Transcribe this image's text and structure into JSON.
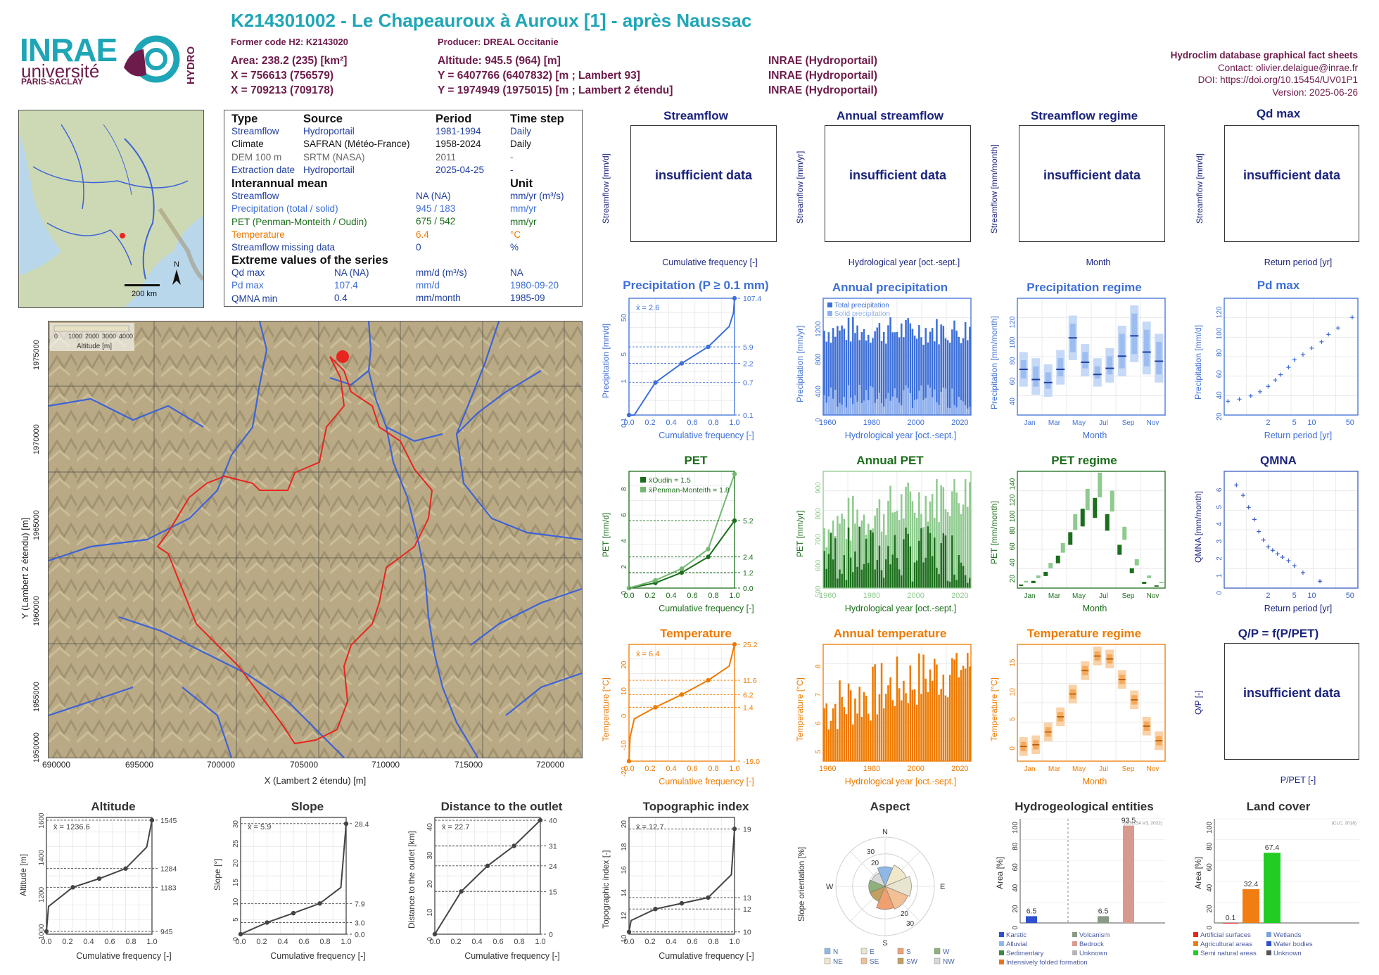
{
  "logos": {
    "inrae": "INRAE",
    "universite": "université",
    "paris_saclay": "PARIS-SACLAY",
    "hydro": "HYDRO"
  },
  "header": {
    "title": "K214301002 - Le Chapeauroux à Auroux [1] - après Naussac",
    "former_code": "Former code H2: K2143020",
    "producer": "Producer: DREAL Occitanie",
    "area": "Area: 238.2 (235) [km²]",
    "x_lambert93": "X = 756613 (756579)",
    "x_lambert2": "X = 709213 (709178)",
    "altitude": "Altitude: 945.5 (964) [m]",
    "y_lambert93": "Y = 6407766 (6407832) [m ; Lambert 93]",
    "y_lambert2": "Y = 1974949 (1975015) [m ; Lambert 2 étendu]",
    "source1": "INRAE (Hydroportail)",
    "source2": "INRAE (Hydroportail)",
    "source3": "INRAE (Hydroportail)",
    "db_title": "Hydroclim database graphical fact sheets",
    "contact": "Contact: olivier.delaigue@inrae.fr",
    "doi": "DOI: https://doi.org/10.15454/UV01P1",
    "version": "Version: 2025-06-26"
  },
  "info": {
    "h_type": "Type",
    "h_source": "Source",
    "h_period": "Period",
    "h_timestep": "Time step",
    "rows": [
      {
        "type": "Streamflow",
        "source": "Hydroportail",
        "period": "1981-1994",
        "step": "Daily",
        "color": "#1f3f9f"
      },
      {
        "type": "Climate",
        "source": "SAFRAN (Météo-France)",
        "period": "1958-2024",
        "step": "Daily",
        "color": "#111111"
      },
      {
        "type": "DEM 100 m",
        "source": "SRTM (NASA)",
        "period": "2011",
        "step": "-",
        "color": "#666666"
      },
      {
        "type": "Extraction date",
        "source": "Hydroportail",
        "period": "2025-04-25",
        "step": "-",
        "color": "#1f3f9f"
      }
    ],
    "h_mean": "Interannual mean",
    "h_unit": "Unit",
    "mean_rows": [
      {
        "label": "Streamflow",
        "value": "NA (NA)",
        "unit": "mm/yr (m³/s)",
        "color": "#1f3f9f"
      },
      {
        "label": "Precipitation (total / solid)",
        "value": "945 / 183",
        "unit": "mm/yr",
        "color": "#3d6fd8"
      },
      {
        "label": "PET (Penman-Monteith / Oudin)",
        "value": "675 / 542",
        "unit": "mm/yr",
        "color": "#1b6e1b"
      },
      {
        "label": "Temperature",
        "value": "6.4",
        "unit": "°C",
        "color": "#ee7a00"
      },
      {
        "label": "Streamflow missing data",
        "value": "0",
        "unit": "%",
        "color": "#1f3f9f"
      }
    ],
    "h_extreme": "Extreme values of the series",
    "ext_rows": [
      {
        "label": "Qd max",
        "value": "NA (NA)",
        "unit": "mm/d (m³/s)",
        "date": "NA",
        "color": "#1f3f9f"
      },
      {
        "label": "Pd max",
        "value": "107.4",
        "unit": "mm/d",
        "date": "1980-09-20",
        "color": "#3d6fd8"
      },
      {
        "label": "QMNA min",
        "value": "0.4",
        "unit": "mm/month",
        "date": "1985-09",
        "color": "#1f3f9f"
      }
    ]
  },
  "map_scale": "200 km",
  "topo": {
    "legend_ticks": [
      "0",
      "1000",
      "2000",
      "3000",
      "4000"
    ],
    "legend_label": "Altitude [m]",
    "xlabel": "X (Lambert 2 étendu) [m]",
    "ylabel": "Y (Lambert 2 étendu) [m]",
    "xticks": [
      "690000",
      "695000",
      "700000",
      "705000",
      "710000",
      "715000",
      "720000"
    ],
    "yticks": [
      "1975000",
      "1970000",
      "1965000",
      "1960000",
      "1955000",
      "1950000"
    ]
  },
  "insufficient": "insufficient data",
  "panels": {
    "streamflow": {
      "title": "Streamflow",
      "ylabel": "Streamflow [mm/d]",
      "xlabel": "Cumulative frequency [-]"
    },
    "annual_streamflow": {
      "title": "Annual streamflow",
      "ylabel": "Streamflow [mm/yr]",
      "xlabel": "Hydrological year [oct.-sept.]"
    },
    "streamflow_regime": {
      "title": "Streamflow regime",
      "ylabel": "Streamflow [mm/month]",
      "xlabel": "Month"
    },
    "qd_max": {
      "title": "Qd max",
      "ylabel": "Streamflow [mm/d]",
      "xlabel": "Return period [yr]"
    },
    "precipitation": {
      "title": "Precipitation (P ≥ 0.1 mm)",
      "ylabel": "Precipitation [mm/d]",
      "xlabel": "Cumulative frequency [-]",
      "mean": "x̄ = 2.6"
    },
    "annual_precipitation": {
      "title": "Annual precipitation",
      "ylabel": "Precipitation [mm/yr]",
      "xlabel": "Hydrological year [oct.-sept.]",
      "legend_total": "Total precipitation",
      "legend_solid": "Solid precipitation"
    },
    "precipitation_regime": {
      "title": "Precipitation regime",
      "ylabel": "Precipitation [mm/month]",
      "xlabel": "Month"
    },
    "pd_max": {
      "title": "Pd max",
      "ylabel": "Precipitation [mm/d]",
      "xlabel": "Return period [yr]"
    },
    "pet": {
      "title": "PET",
      "ylabel": "PET [mm/d]",
      "xlabel": "Cumulative frequency [-]",
      "legend_oudin": "x̄Oudin = 1.5",
      "legend_pm": "x̄Penman-Monteith = 1.8"
    },
    "annual_pet": {
      "title": "Annual PET",
      "ylabel": "PET [mm/yr]",
      "xlabel": "Hydrological year [oct.-sept.]"
    },
    "pet_regime": {
      "title": "PET regime",
      "ylabel": "PET [mm/month]",
      "xlabel": "Month"
    },
    "qmna": {
      "title": "QMNA",
      "ylabel": "QMNA [mm/month]",
      "xlabel": "Return period [yr]"
    },
    "temperature": {
      "title": "Temperature",
      "ylabel": "Temperature [°C]",
      "xlabel": "Cumulative frequency [-]",
      "mean": "x̄ = 6.4"
    },
    "annual_temperature": {
      "title": "Annual temperature",
      "ylabel": "Temperature [°C]",
      "xlabel": "Hydrological year [oct.-sept.]"
    },
    "temperature_regime": {
      "title": "Temperature regime",
      "ylabel": "Temperature [°C]",
      "xlabel": "Month"
    },
    "qp": {
      "title": "Q/P = f(P/PET)",
      "ylabel": "Q/P [-]",
      "xlabel": "P/PET [-]"
    },
    "altitude": {
      "title": "Altitude",
      "ylabel": "Altitude [m]",
      "xlabel": "Cumulative frequency [-]",
      "mean": "x̄ = 1236.6"
    },
    "slope": {
      "title": "Slope",
      "ylabel": "Slope [°]",
      "xlabel": "Cumulative frequency [-]",
      "mean": "x̄ = 5.9"
    },
    "distance": {
      "title": "Distance to the outlet",
      "ylabel": "Distance to the outlet [km]",
      "xlabel": "Cumulative frequency [-]",
      "mean": "x̄ = 22.7"
    },
    "topo_index": {
      "title": "Topographic index",
      "ylabel": "Topographic index [-]",
      "xlabel": "Cumulative frequency [-]",
      "mean": "x̄ = 12.7"
    },
    "aspect": {
      "title": "Aspect",
      "ylabel": "Slope orientation [%]"
    },
    "hydrogeo": {
      "title": "Hydrogeological entities",
      "ylabel": "Area [%]",
      "source": "(BDLISA V3, 2022)"
    },
    "landcover": {
      "title": "Land cover",
      "ylabel": "Area [%]",
      "source": "(CLC, 2018)"
    }
  },
  "months": [
    "Jan",
    "Mar",
    "May",
    "Jul",
    "Sep",
    "Nov"
  ],
  "chart_data": [
    {
      "id": "precip_cdf",
      "type": "line",
      "x": [
        0,
        0.05,
        0.25,
        0.5,
        0.75,
        0.95,
        0.99,
        1.0
      ],
      "y": [
        0.1,
        0.1,
        0.7,
        2.2,
        5.9,
        20,
        45,
        107.4
      ],
      "yscale": "log",
      "ylim": [
        0.1,
        107.4
      ],
      "annot": [
        "107.4",
        "5.9",
        "2.2",
        "0.7",
        "0.1"
      ]
    },
    {
      "id": "pet_cdf",
      "type": "line",
      "series": [
        {
          "name": "Oudin",
          "x": [
            0,
            0.25,
            0.5,
            0.75,
            1.0
          ],
          "y": [
            0.0,
            0.4,
            1.2,
            2.4,
            5.2
          ]
        },
        {
          "name": "Penman-Monteith",
          "x": [
            0,
            0.25,
            0.5,
            0.75,
            1.0
          ],
          "y": [
            0.0,
            0.6,
            1.5,
            3.0,
            8.8
          ]
        }
      ],
      "annot": [
        "5.2",
        "2.4",
        "1.2",
        "0.0"
      ]
    },
    {
      "id": "temp_cdf",
      "type": "line",
      "x": [
        0,
        0.01,
        0.05,
        0.25,
        0.5,
        0.75,
        0.95,
        1.0
      ],
      "y": [
        -19,
        -10,
        -3,
        1.4,
        6.2,
        11.6,
        17,
        25.2
      ],
      "ylim": [
        -19,
        25.2
      ],
      "annot": [
        "25.2",
        "11.6",
        "6.2",
        "1.4",
        "-19.0"
      ]
    },
    {
      "id": "annual_precip",
      "type": "bar",
      "years": [
        1958,
        2024
      ],
      "total_range": [
        780,
        1380
      ],
      "solid_range": [
        80,
        380
      ]
    },
    {
      "id": "annual_pet",
      "type": "bar",
      "years": [
        1958,
        2024
      ],
      "pm_range": [
        560,
        900
      ],
      "oudin_range": [
        500,
        720
      ]
    },
    {
      "id": "annual_temp",
      "type": "bar",
      "years": [
        1958,
        2024
      ],
      "range": [
        4.8,
        8.3
      ]
    },
    {
      "id": "precip_regime",
      "type": "box",
      "categories": [
        "Jan",
        "Feb",
        "Mar",
        "Apr",
        "May",
        "Jun",
        "Jul",
        "Aug",
        "Sep",
        "Oct",
        "Nov",
        "Dec"
      ],
      "median": [
        65,
        55,
        52,
        65,
        96,
        72,
        60,
        66,
        78,
        98,
        82,
        73
      ],
      "q1": [
        48,
        40,
        38,
        50,
        74,
        58,
        48,
        52,
        58,
        72,
        60,
        52
      ],
      "q3": [
        82,
        76,
        70,
        84,
        118,
        90,
        76,
        86,
        108,
        128,
        112,
        100
      ]
    },
    {
      "id": "pet_regime",
      "type": "box",
      "categories": [
        "Jan",
        "Feb",
        "Mar",
        "Apr",
        "May",
        "Jun",
        "Jul",
        "Aug",
        "Sep",
        "Oct",
        "Nov",
        "Dec"
      ],
      "oudin": [
        4,
        8,
        18,
        36,
        62,
        88,
        100,
        82,
        48,
        22,
        7,
        3
      ],
      "pm": [
        8,
        14,
        28,
        50,
        82,
        110,
        128,
        108,
        68,
        32,
        14,
        7
      ]
    },
    {
      "id": "temp_regime",
      "type": "box",
      "categories": [
        "Jan",
        "Feb",
        "Mar",
        "Apr",
        "May",
        "Jun",
        "Jul",
        "Aug",
        "Sep",
        "Oct",
        "Nov",
        "Dec"
      ],
      "median": [
        -0.5,
        -0.2,
        2,
        4.6,
        8.5,
        12.5,
        15,
        14.5,
        11,
        7.5,
        3,
        0.5
      ]
    },
    {
      "id": "pd_max",
      "type": "scatter",
      "x_return": [
        1.02,
        1.1,
        1.3,
        1.6,
        2,
        2.5,
        3,
        4,
        5,
        7,
        10,
        15,
        20,
        30,
        55
      ],
      "y": [
        28,
        30,
        33,
        37,
        42,
        48,
        53,
        60,
        67,
        72,
        78,
        84,
        91,
        97,
        107
      ]
    },
    {
      "id": "qmna",
      "type": "scatter",
      "x_return": [
        1.07,
        1.15,
        1.25,
        1.4,
        1.55,
        1.75,
        2.0,
        2.3,
        2.7,
        3.2,
        4,
        5,
        7,
        14
      ],
      "y": [
        6.0,
        5.4,
        4.7,
        4.0,
        3.3,
        2.8,
        2.4,
        2.2,
        2.0,
        1.8,
        1.6,
        1.3,
        0.9,
        0.4
      ]
    },
    {
      "id": "altitude_cdf",
      "type": "line",
      "x": [
        0,
        0.02,
        0.25,
        0.5,
        0.75,
        0.95,
        1.0
      ],
      "y": [
        945,
        1080,
        1183,
        1230,
        1284,
        1400,
        1545
      ],
      "annot": [
        "1545",
        "1284",
        "1183",
        "945"
      ]
    },
    {
      "id": "slope_cdf",
      "type": "line",
      "x": [
        0,
        0.25,
        0.5,
        0.75,
        0.95,
        1.0
      ],
      "y": [
        0,
        3.0,
        5.4,
        7.9,
        12,
        28.4
      ],
      "annot": [
        "28.4",
        "7.9",
        "3.0",
        "0.0"
      ]
    },
    {
      "id": "distance_cdf",
      "type": "line",
      "x": [
        0,
        0.25,
        0.5,
        0.75,
        1.0
      ],
      "y": [
        0,
        15,
        24,
        31,
        40
      ],
      "annot": [
        "40",
        "31",
        "24",
        "15",
        "0"
      ]
    },
    {
      "id": "topo_cdf",
      "type": "line",
      "x": [
        0,
        0.02,
        0.25,
        0.5,
        0.75,
        0.97,
        1.0
      ],
      "y": [
        10,
        11,
        12,
        12.5,
        13,
        15,
        19
      ],
      "annot": [
        "19",
        "13",
        "12",
        "10"
      ]
    },
    {
      "id": "aspect",
      "type": "pie",
      "categories": [
        "N",
        "NE",
        "E",
        "SE",
        "S",
        "SW",
        "W",
        "NW"
      ],
      "values": [
        12,
        14,
        16,
        15,
        14,
        10,
        10,
        9
      ]
    },
    {
      "id": "hydrogeo",
      "type": "bar",
      "categories": [
        "Karstic",
        "Alluvial",
        "Sedimentary",
        "Intensively folded formation",
        "Volcanism",
        "Bedrock",
        "Unknown"
      ],
      "values": [
        6.5,
        0,
        0,
        0,
        6.5,
        93.5,
        0
      ],
      "colors": [
        "#2f4fd0",
        "#8fb8e6",
        "#3c8a3c",
        "#e8731c",
        "#8a9a86",
        "#d99a8e",
        "#b5b5b5"
      ],
      "labels": [
        "6.5",
        "6.5",
        "93.5"
      ],
      "ylim": [
        0,
        100
      ]
    },
    {
      "id": "landcover",
      "type": "bar",
      "categories": [
        "Artificial surfaces",
        "Agricultural areas",
        "Semi natural areas",
        "Wetlands",
        "Water bodies",
        "Unknown"
      ],
      "values": [
        0.1,
        32.4,
        67.4,
        0,
        0,
        0
      ],
      "colors": [
        "#e8251f",
        "#f07e12",
        "#22cc22",
        "#7aa4e0",
        "#2f4fd0",
        "#555555"
      ],
      "labels": [
        "0.1",
        "32.4",
        "67.4"
      ],
      "ylim": [
        0,
        100
      ]
    }
  ]
}
